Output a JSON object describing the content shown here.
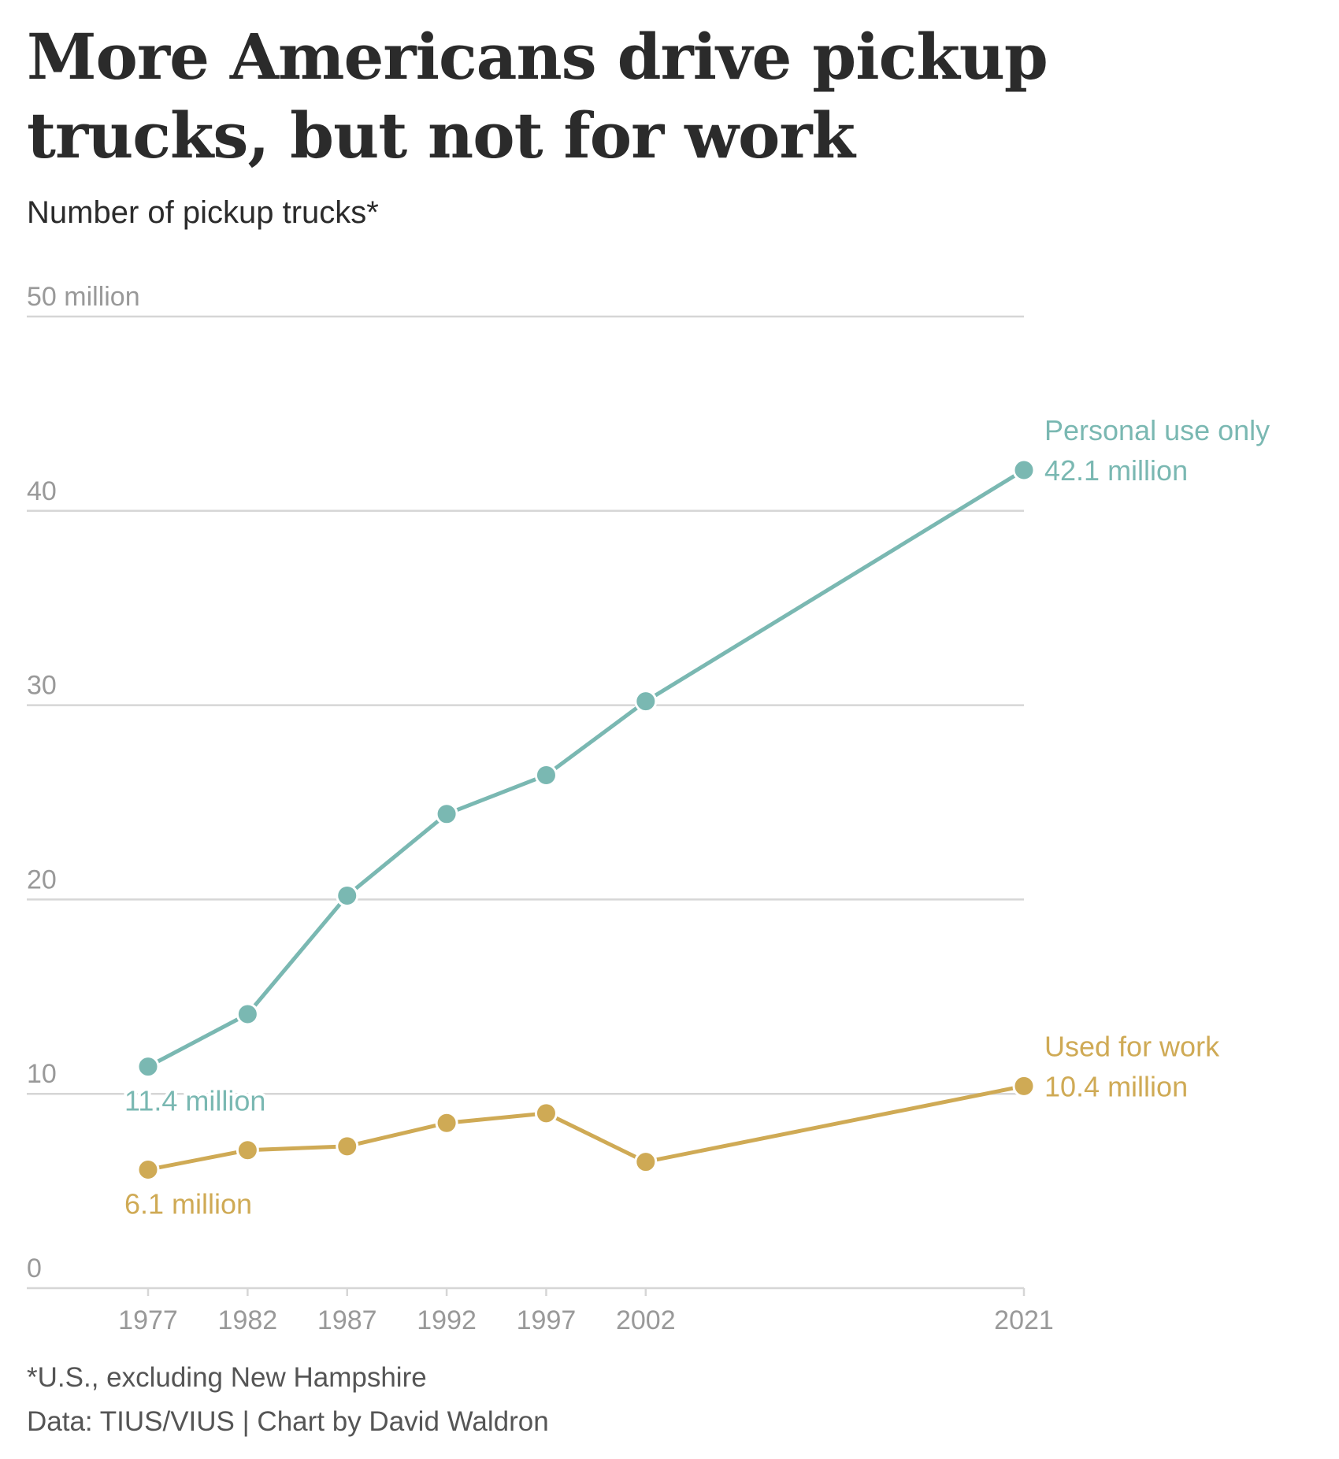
{
  "title": "More Americans drive pickup trucks, but not for work",
  "subtitle": "Number of pickup trucks*",
  "footnote": "*U.S., excluding New Hampshire",
  "source": "Data: TIUS/VIUS | Chart by David Waldron",
  "colors": {
    "personal": "#7ab8b2",
    "work": "#cfaa55",
    "grid": "#d6d6d6",
    "axis_text": "#999999"
  },
  "chart_data": {
    "type": "line",
    "x": [
      1977,
      1982,
      1987,
      1992,
      1997,
      2002,
      2021
    ],
    "x_tick_labels": [
      "1977",
      "1982",
      "1987",
      "1992",
      "1997",
      "2002",
      "2021"
    ],
    "ylim": [
      0,
      50
    ],
    "y_ticks": [
      0,
      10,
      20,
      30,
      40,
      50
    ],
    "y_tick_labels": [
      "0",
      "10",
      "20",
      "30",
      "40",
      "50 million"
    ],
    "grid": true,
    "series": [
      {
        "name": "Personal use only",
        "color": "#7ab8b2",
        "values": [
          11.4,
          14.1,
          20.2,
          24.4,
          26.4,
          30.2,
          42.1
        ],
        "start_label": "11.4 million",
        "end_label": "42.1 million"
      },
      {
        "name": "Used for work",
        "color": "#cfaa55",
        "values": [
          6.1,
          7.1,
          7.3,
          8.5,
          9.0,
          6.5,
          10.4
        ],
        "start_label": "6.1 million",
        "end_label": "10.4 million"
      }
    ]
  }
}
